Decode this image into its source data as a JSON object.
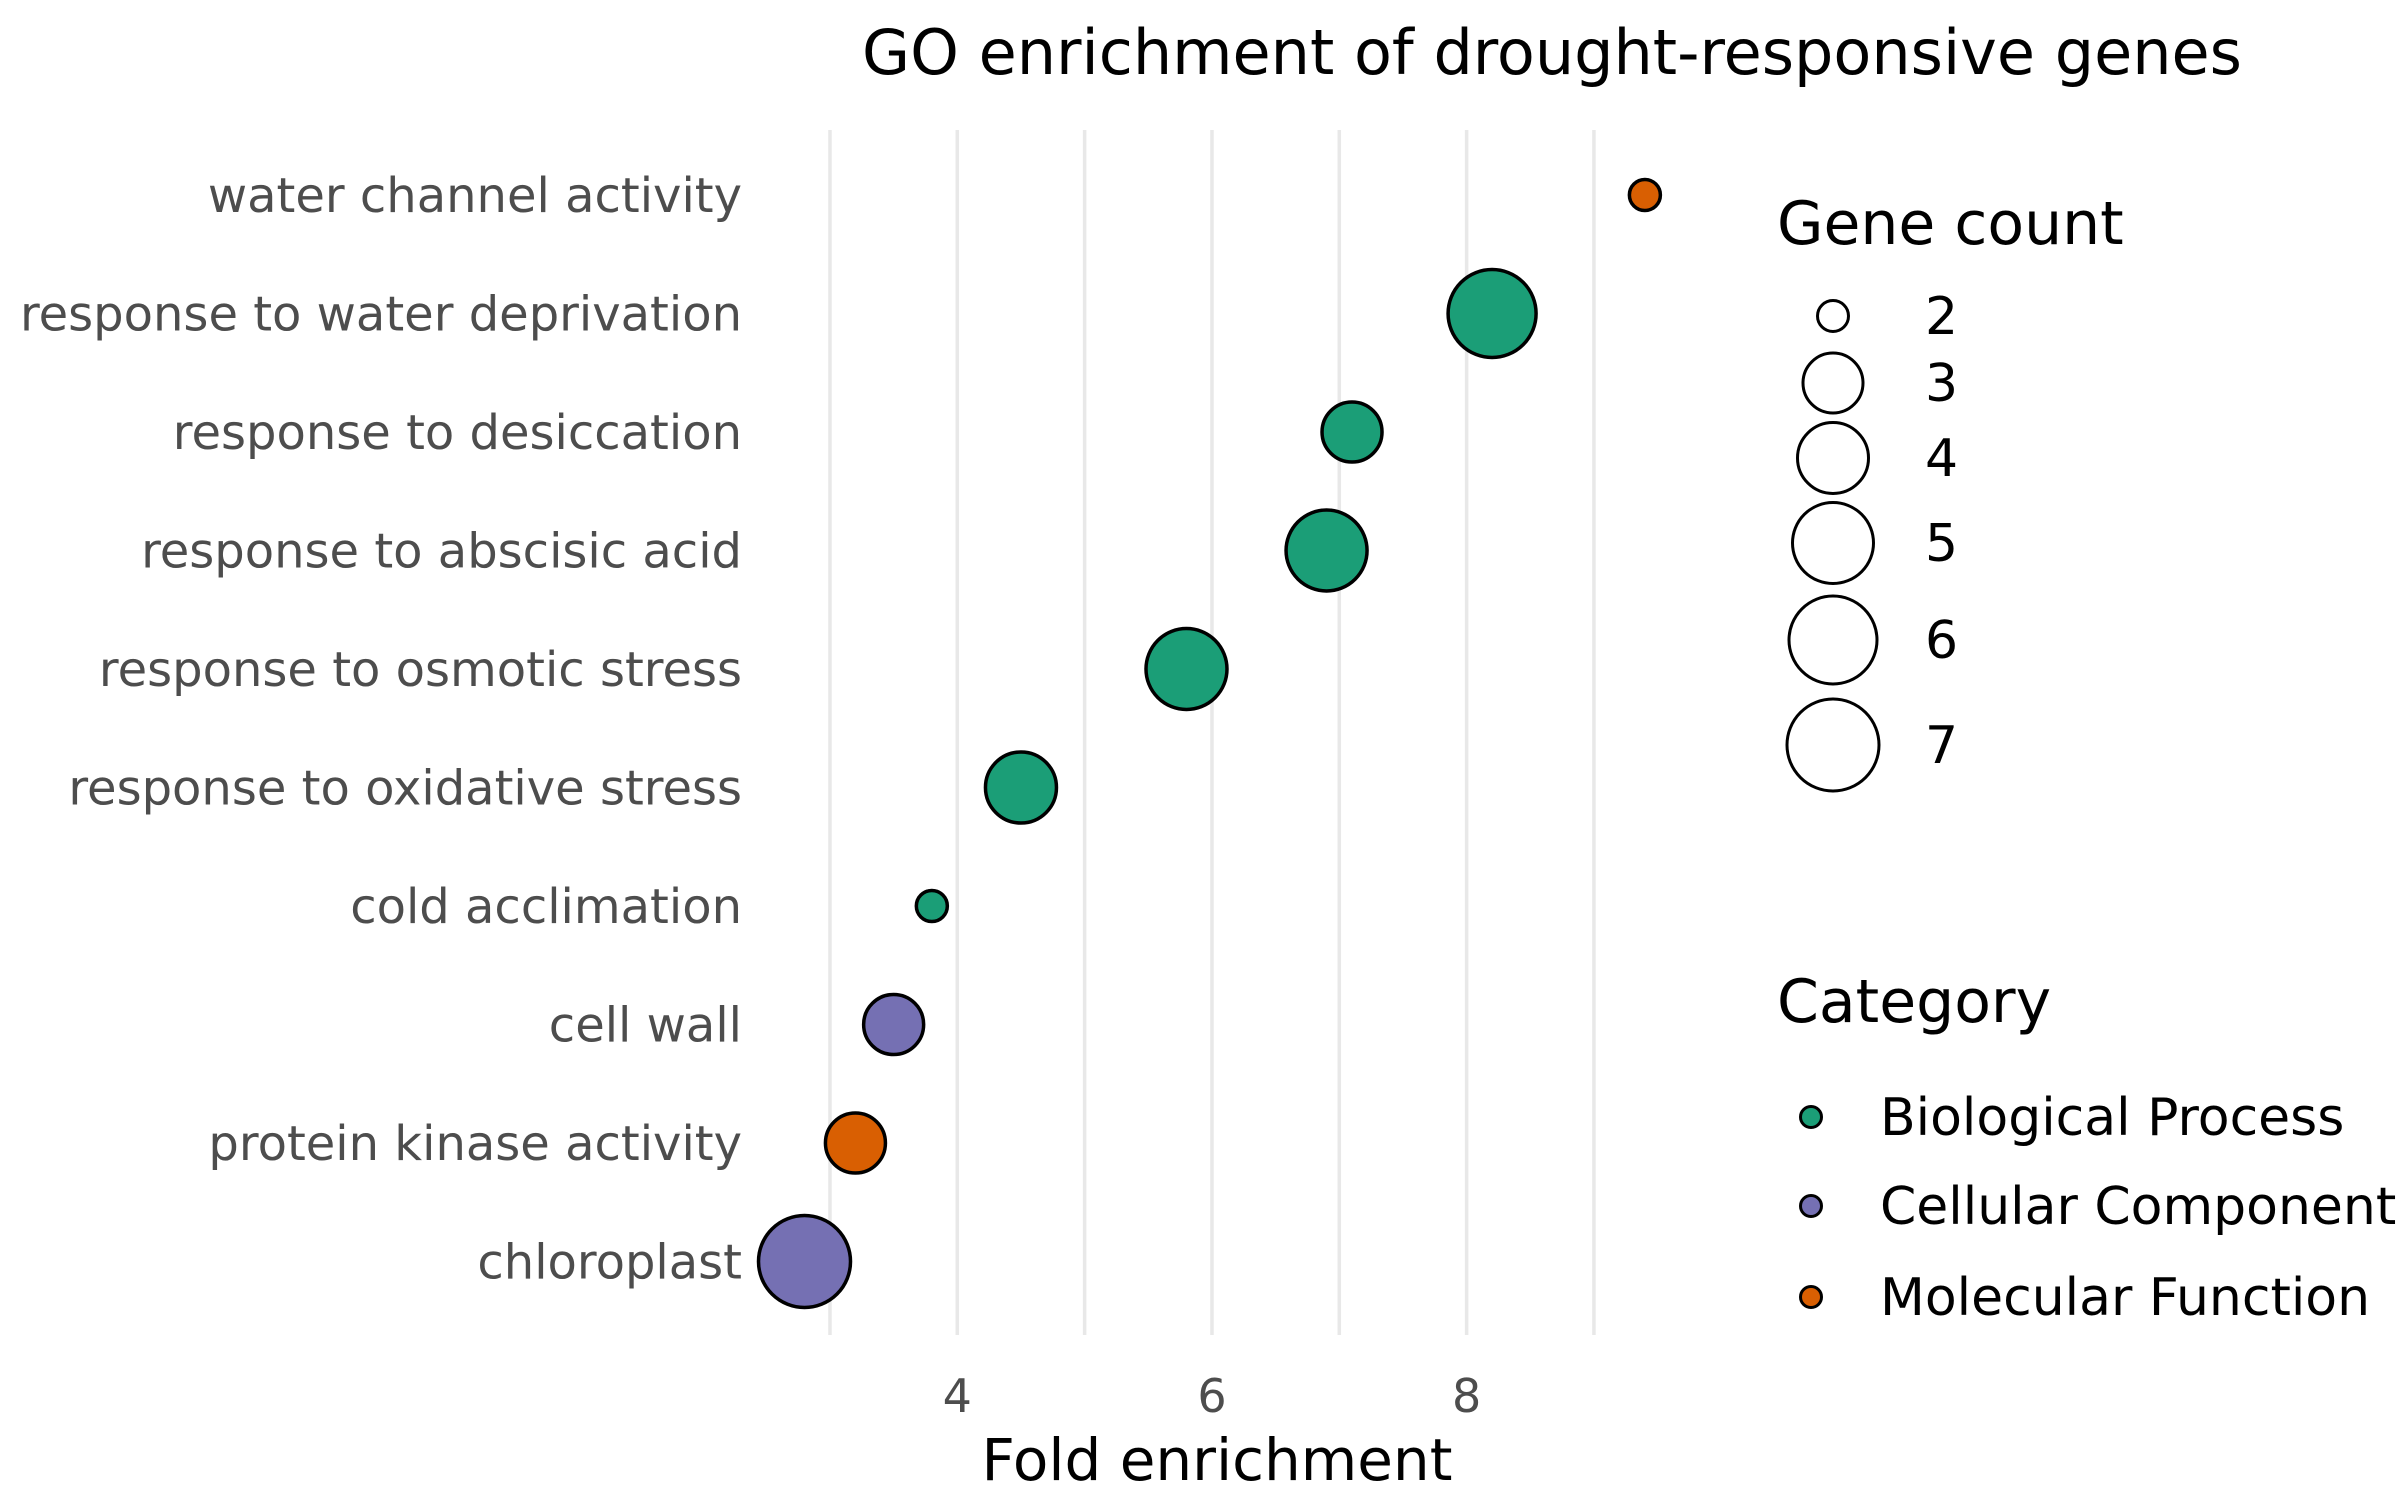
{
  "colors": {
    "background": "#ffffff",
    "gridline": "#e8e8e8",
    "dot_outline": "#000000",
    "axis_text": "#4d4d4d",
    "text": "#000000"
  },
  "chart_data": {
    "type": "scatter",
    "title": "GO enrichment of drought-responsive genes",
    "xlabel": "Fold enrichment",
    "ylabel": "",
    "x_ticks": [
      4,
      6,
      8
    ],
    "x_gridlines": [
      3,
      4,
      5,
      6,
      7,
      8,
      9
    ],
    "xlim": [
      2.3,
      9.9
    ],
    "grid": "vertical-only",
    "legend_position": "right",
    "size_legend": {
      "title": "Gene count",
      "values": [
        2,
        3,
        4,
        5,
        6,
        7
      ]
    },
    "category_legend": {
      "title": "Category",
      "items": [
        {
          "label": "Biological Process",
          "color": "#1b9e77"
        },
        {
          "label": "Cellular Component",
          "color": "#7570b3"
        },
        {
          "label": "Molecular Function",
          "color": "#d95f02"
        }
      ]
    },
    "rows": [
      {
        "label": "water channel activity",
        "category": "Molecular Function",
        "fold_enrichment": 9.4,
        "gene_count": 2
      },
      {
        "label": "response to water deprivation",
        "category": "Biological Process",
        "fold_enrichment": 8.2,
        "gene_count": 6
      },
      {
        "label": "response to desiccation",
        "category": "Biological Process",
        "fold_enrichment": 7.1,
        "gene_count": 3
      },
      {
        "label": "response to abscisic acid",
        "category": "Biological Process",
        "fold_enrichment": 6.9,
        "gene_count": 5
      },
      {
        "label": "response to osmotic stress",
        "category": "Biological Process",
        "fold_enrichment": 5.8,
        "gene_count": 5
      },
      {
        "label": "response to oxidative stress",
        "category": "Biological Process",
        "fold_enrichment": 4.5,
        "gene_count": 4
      },
      {
        "label": "cold acclimation",
        "category": "Biological Process",
        "fold_enrichment": 3.8,
        "gene_count": 2
      },
      {
        "label": "cell wall",
        "category": "Cellular Component",
        "fold_enrichment": 3.5,
        "gene_count": 3
      },
      {
        "label": "protein kinase activity",
        "category": "Molecular Function",
        "fold_enrichment": 3.2,
        "gene_count": 3
      },
      {
        "label": "chloroplast",
        "category": "Cellular Component",
        "fold_enrichment": 2.8,
        "gene_count": 7
      }
    ]
  }
}
